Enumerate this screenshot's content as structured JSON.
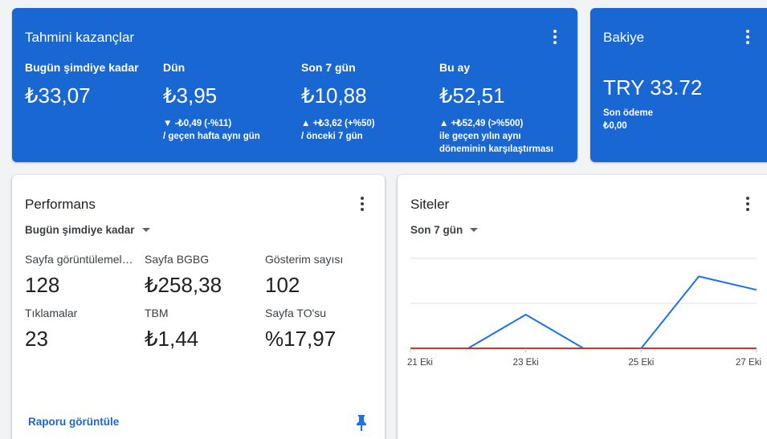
{
  "earnings": {
    "title": "Tahmini kazançlar",
    "metrics": [
      {
        "label": "Bugün şimdiye kadar",
        "value": "₺33,07",
        "delta_line1": "",
        "delta_line2": "",
        "delta_line3": ""
      },
      {
        "label": "Dün",
        "value": "₺3,95",
        "delta_line1": "▼ -₺0,49 (-%11)",
        "delta_line2": "/ geçen hafta aynı gün",
        "delta_line3": ""
      },
      {
        "label": "Son 7 gün",
        "value": "₺10,88",
        "delta_line1": "▲ +₺3,62 (+%50)",
        "delta_line2": "/ önceki 7 gün",
        "delta_line3": ""
      },
      {
        "label": "Bu ay",
        "value": "₺52,51",
        "delta_line1": "▲ +₺52,49 (>%500)",
        "delta_line2": "ile geçen yılın aynı",
        "delta_line3": "döneminin karşılaştırması"
      }
    ]
  },
  "balance": {
    "title": "Bakiye",
    "value": "TRY 33.72",
    "last_payment_label": "Son ödeme",
    "last_payment_value": "₺0,00"
  },
  "performance": {
    "title": "Performans",
    "period": "Bugün şimdiye kadar",
    "metrics": [
      {
        "label": "Sayfa görüntülemeleri",
        "value": "128"
      },
      {
        "label": "Sayfa BGBG",
        "value": "₺258,38"
      },
      {
        "label": "Gösterim sayısı",
        "value": "102"
      },
      {
        "label": "Tıklamalar",
        "value": "23"
      },
      {
        "label": "TBM",
        "value": "₺1,44"
      },
      {
        "label": "Sayfa TO'su",
        "value": "%17,97"
      }
    ],
    "report_link": "Raporu görüntüle"
  },
  "sites": {
    "title": "Siteler",
    "period": "Son 7 gün"
  },
  "chart_data": {
    "type": "line",
    "x": [
      "21 Eki",
      "22 Eki",
      "23 Eki",
      "24 Eki",
      "25 Eki",
      "26 Eki",
      "27 Eki"
    ],
    "tick_labels": [
      "21 Eki",
      "23 Eki",
      "25 Eki",
      "27 Eki"
    ],
    "series": [
      {
        "values": [
          0,
          0,
          0.75,
          0,
          0,
          1.6,
          1.3
        ],
        "color": "#1a73e8"
      },
      {
        "values": [
          0,
          0,
          0,
          0,
          0,
          0,
          0
        ],
        "color": "#d93025"
      }
    ],
    "ylim": [
      0,
      2
    ],
    "grid": true
  },
  "colors": {
    "accent": "#1967d2",
    "series_blue": "#1a73e8",
    "series_red": "#d93025"
  }
}
